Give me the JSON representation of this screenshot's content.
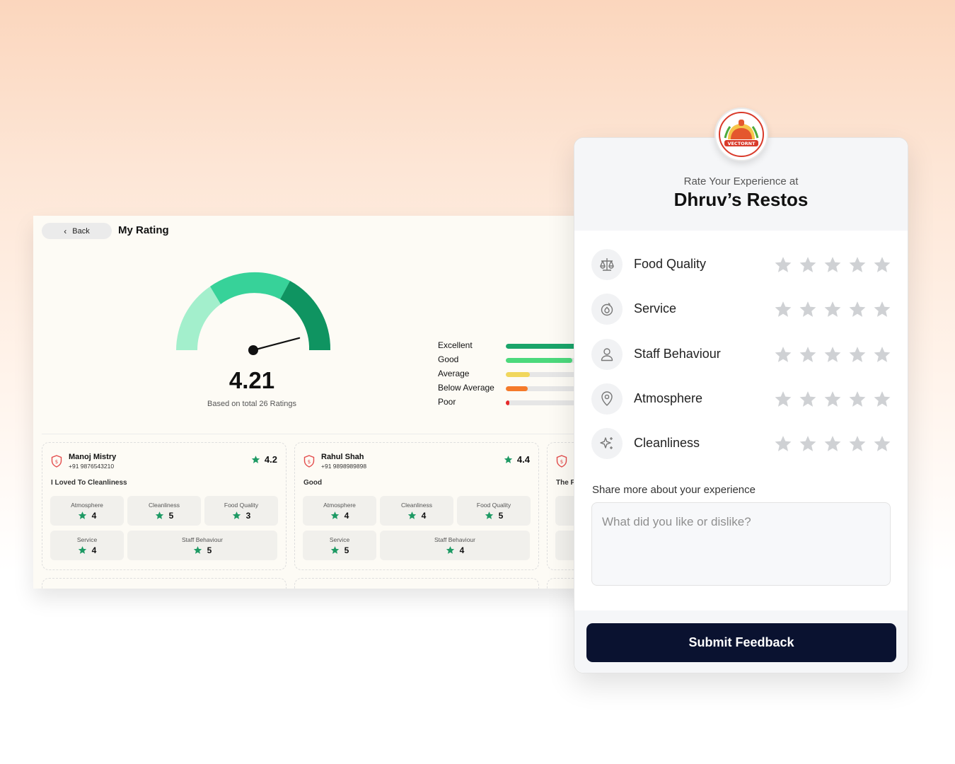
{
  "dashboard": {
    "back_label": "Back",
    "title": "My Rating",
    "score": "4.21",
    "score_sub": "Based on total 26 Ratings",
    "gauge_value": 4.21,
    "gauge_max": 5,
    "distribution": [
      {
        "label": "Excellent",
        "fraction": 0.85,
        "color": "#1aa56a"
      },
      {
        "label": "Good",
        "fraction": 0.55,
        "color": "#4cd97c"
      },
      {
        "label": "Average",
        "fraction": 0.2,
        "color": "#f1d75c"
      },
      {
        "label": "Below Average",
        "fraction": 0.18,
        "color": "#f57a2a"
      },
      {
        "label": "Poor",
        "fraction": 0.03,
        "color": "#e62a2a"
      }
    ],
    "reviews": [
      {
        "name": "Manoj Mistry",
        "phone": "+91 9876543210",
        "rating": "4.2",
        "comment": "I Loved To Cleanliness",
        "scores": {
          "atmosphere": {
            "label": "Atmosphere",
            "value": "4"
          },
          "cleanliness": {
            "label": "Cleanliness",
            "value": "5"
          },
          "food": {
            "label": "Food Quality",
            "value": "3"
          },
          "service": {
            "label": "Service",
            "value": "4"
          },
          "staff": {
            "label": "Staff Behaviour",
            "value": "5"
          }
        }
      },
      {
        "name": "Rahul Shah",
        "phone": "+91 9898989898",
        "rating": "4.4",
        "comment": "Good",
        "scores": {
          "atmosphere": {
            "label": "Atmosphere",
            "value": "4"
          },
          "cleanliness": {
            "label": "Cleanliness",
            "value": "4"
          },
          "food": {
            "label": "Food Quality",
            "value": "5"
          },
          "service": {
            "label": "Service",
            "value": "5"
          },
          "staff": {
            "label": "Staff Behaviour",
            "value": "4"
          }
        }
      },
      {
        "comment": "The F"
      }
    ]
  },
  "feedback": {
    "logo_text": "VECTORNT",
    "subtitle": "Rate Your Experience at",
    "title": "Dhruv’s Restos",
    "criteria": [
      {
        "label": "Food Quality",
        "icon": "scale-icon"
      },
      {
        "label": "Service",
        "icon": "service-icon"
      },
      {
        "label": "Staff Behaviour",
        "icon": "user-icon"
      },
      {
        "label": "Atmosphere",
        "icon": "location-pin-icon"
      },
      {
        "label": "Cleanliness",
        "icon": "sparkle-icon"
      }
    ],
    "share_label": "Share more about your experience",
    "placeholder": "What did you like or dislike?",
    "submit_label": "Submit Feedback"
  },
  "colors": {
    "accent_green": "#1e9a64",
    "gauge_light": "#a3efcc",
    "gauge_mid": "#37d299",
    "gauge_dark": "#0f9461",
    "button_navy": "#0a1230",
    "star_empty": "#cfd1d4",
    "shield_red": "#e44c4c"
  }
}
